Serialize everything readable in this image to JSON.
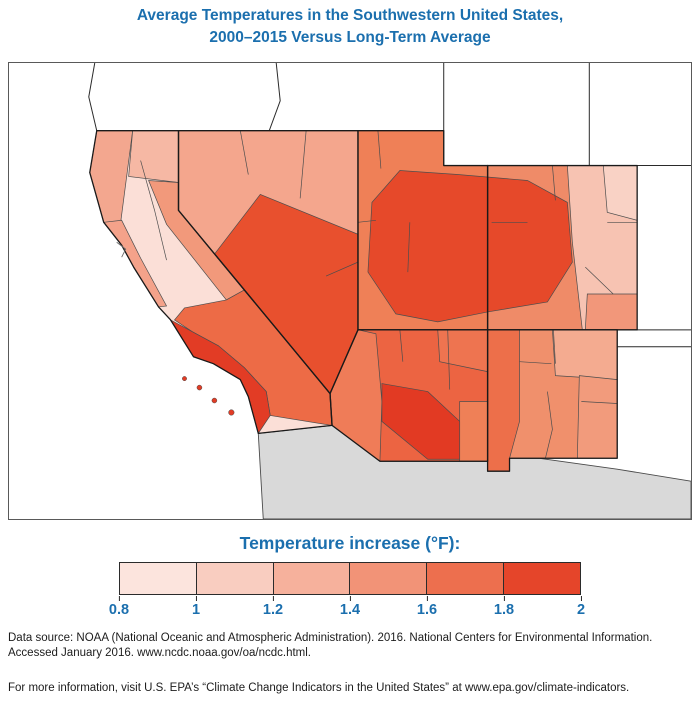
{
  "title": {
    "line1": "Average Temperatures in the Southwestern United States,",
    "line2": "2000–2015 Versus Long-Term Average"
  },
  "legend": {
    "title": "Temperature increase (°F):",
    "tick_labels": [
      "0.8",
      "1",
      "1.2",
      "1.4",
      "1.6",
      "1.8",
      "2"
    ],
    "segment_colors": [
      "#fce4dd",
      "#f9cdc0",
      "#f6b19c",
      "#f29377",
      "#ed6f4e",
      "#e5452a"
    ]
  },
  "footer": {
    "source_line1": "Data source: NOAA (National Oceanic and Atmospheric Administration). 2016. National Centers for Environmental Information.",
    "source_line2": "Accessed January 2016. www.ncdc.noaa.gov/oa/ncdc.html.",
    "more_info": "For more information, visit U.S. EPA’s “Climate Change Indicators in the United States” at www.epa.gov/climate-indicators."
  },
  "colors": {
    "title_blue": "#1b6fae",
    "mexico_gray": "#d9d9d9",
    "state_border": "#1a1a1a",
    "division_border": "#4d4d4d"
  },
  "map": {
    "fills": {
      "mexico": "#d9d9d9",
      "ca_base": "#fbdfd7",
      "ca_nw_coast": "#f3a78f",
      "ca_north": "#f6b8a4",
      "ca_sierra_east": "#f2997b",
      "ca_central_coast": "#f4a28a",
      "ca_south_coast": "#e23c25",
      "ca_se_desert": "#ed6b46",
      "nv_base": "#f4a68d",
      "nv_central_south": "#e8502e",
      "ut_base": "#ef8057",
      "ut_co_dark": "#e6492a",
      "co_base": "#ef8b68",
      "co_east": "#f7c3b2",
      "co_northeast": "#f9d2c5",
      "co_southeast": "#f2977a",
      "az_base": "#ec6442",
      "az_west": "#ef7c58",
      "az_northeast": "#ee7450",
      "az_south": "#e23a23",
      "az_southeast": "#ef8057",
      "nm_base": "#f0906c",
      "nm_west": "#ed6f4a",
      "nm_northeast": "#f4ab90",
      "nm_east": "#f29b7c"
    }
  },
  "chart_data": {
    "type": "choropleth_map",
    "title": "Average Temperatures in the Southwestern United States, 2000–2015 Versus Long-Term Average",
    "variable": "Temperature increase (°F)",
    "scale_range": [
      0.8,
      2
    ],
    "scale_step": 0.2,
    "states_shown": [
      "California",
      "Nevada",
      "Utah",
      "Colorado",
      "Arizona",
      "New Mexico"
    ],
    "context_areas": [
      "Oregon",
      "Idaho",
      "Wyoming",
      "Nebraska",
      "Kansas",
      "Oklahoma",
      "Texas",
      "Mexico",
      "Pacific Ocean"
    ],
    "regions": [
      {
        "name": "Northwestern California coast",
        "value_f": 1.3
      },
      {
        "name": "Northeastern California interior",
        "value_f": 1.2
      },
      {
        "name": "Central California valley",
        "value_f": 0.9
      },
      {
        "name": "Central California coast",
        "value_f": 1.3
      },
      {
        "name": "Eastern Sierra California",
        "value_f": 1.4
      },
      {
        "name": "Southern California coast",
        "value_f": 1.9
      },
      {
        "name": "Southeastern California desert",
        "value_f": 1.7
      },
      {
        "name": "Northern Nevada",
        "value_f": 1.3
      },
      {
        "name": "Central and southern Nevada",
        "value_f": 1.8
      },
      {
        "name": "Western Utah",
        "value_f": 1.6
      },
      {
        "name": "Eastern Utah and western Colorado",
        "value_f": 1.9
      },
      {
        "name": "Central Colorado",
        "value_f": 1.5
      },
      {
        "name": "Eastern Colorado plains",
        "value_f": 1.2
      },
      {
        "name": "Northeastern Colorado",
        "value_f": 1.1
      },
      {
        "name": "Southeastern Colorado",
        "value_f": 1.4
      },
      {
        "name": "Northern Arizona",
        "value_f": 1.7
      },
      {
        "name": "Western Arizona",
        "value_f": 1.6
      },
      {
        "name": "South-central Arizona",
        "value_f": 1.9
      },
      {
        "name": "Southeastern Arizona",
        "value_f": 1.6
      },
      {
        "name": "Western New Mexico",
        "value_f": 1.7
      },
      {
        "name": "Central New Mexico",
        "value_f": 1.5
      },
      {
        "name": "Northeastern New Mexico",
        "value_f": 1.3
      },
      {
        "name": "Eastern New Mexico",
        "value_f": 1.4
      }
    ],
    "legend_position": "bottom"
  }
}
